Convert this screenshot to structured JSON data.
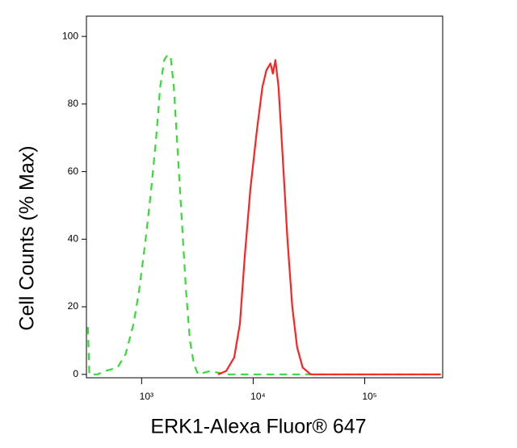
{
  "chart_data": {
    "type": "line",
    "x_label": "ERK1-Alexa Fluor® 647",
    "y_label": "Cell Counts (% Max)",
    "xscale": "log",
    "xlim": [
      320,
      500000
    ],
    "ylim": [
      -1,
      106
    ],
    "xticks": [
      {
        "value": 1000,
        "label": "10³"
      },
      {
        "value": 10000,
        "label": "10⁴"
      },
      {
        "value": 100000,
        "label": "10⁵"
      }
    ],
    "yticks": [
      0,
      20,
      40,
      60,
      80,
      100
    ],
    "series": [
      {
        "color": "#33dd33",
        "dash": true,
        "x": [
          330,
          340,
          401,
          473,
          607,
          718,
          847,
          951,
          1087,
          1221,
          1349,
          1466,
          1593,
          1703,
          1820,
          1945,
          2114,
          2297,
          2495,
          2711,
          2946,
          3200,
          4110,
          5730,
          480000
        ],
        "values": [
          14,
          0,
          0,
          1,
          2,
          6,
          15,
          25,
          40,
          55,
          70,
          85,
          93,
          94.5,
          94,
          85,
          65,
          45,
          25,
          10,
          3,
          0,
          1,
          0,
          0
        ]
      },
      {
        "color": "#ff2222",
        "dash": false,
        "x": [
          4850,
          5730,
          6760,
          7600,
          8400,
          9440,
          10770,
          12100,
          13150,
          14290,
          15020,
          15820,
          16880,
          18350,
          20280,
          22400,
          24770,
          27800,
          32800,
          480000
        ],
        "values": [
          0,
          1,
          5,
          15,
          35,
          55,
          72,
          85,
          90,
          92,
          89,
          93,
          85,
          65,
          40,
          20,
          8,
          2,
          0,
          0
        ]
      }
    ]
  }
}
